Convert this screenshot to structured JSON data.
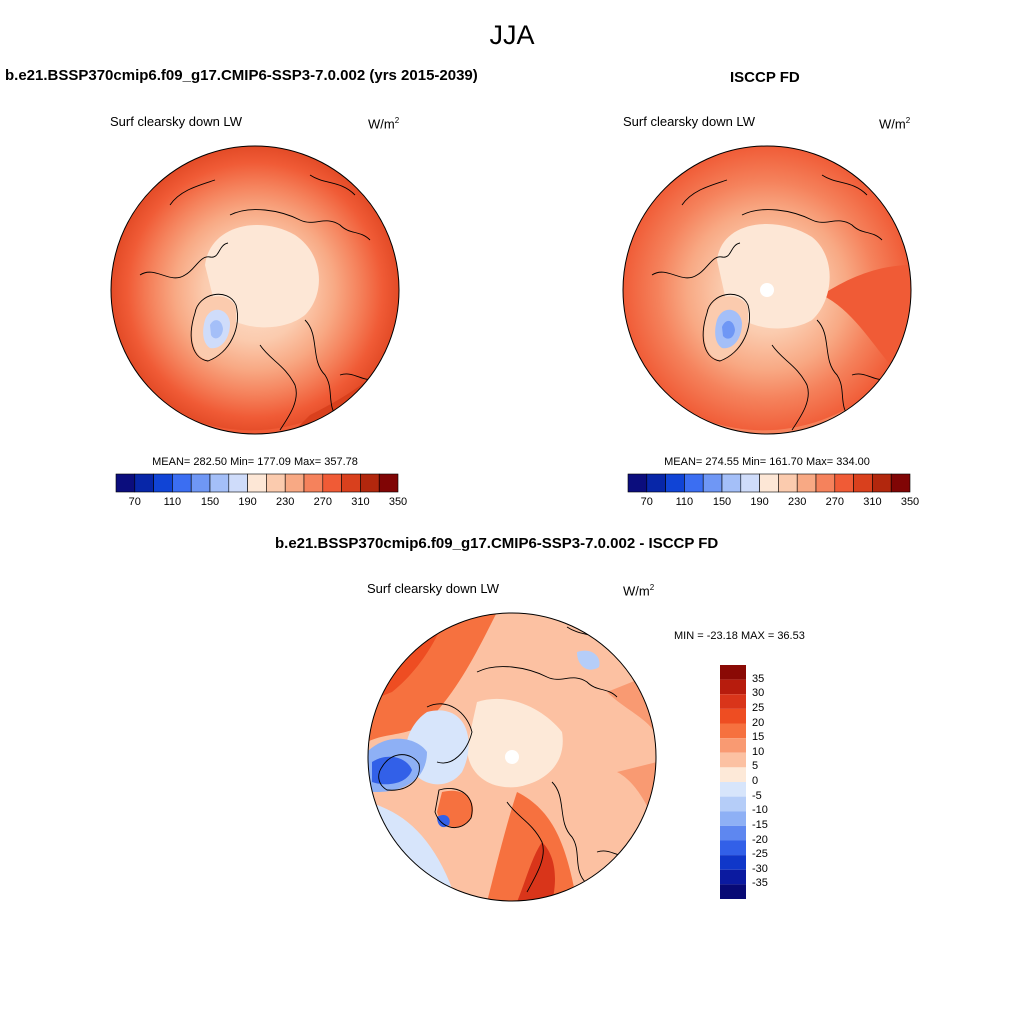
{
  "figure": {
    "season": "JJA"
  },
  "panels": [
    {
      "title": "b.e21.BSSP370cmip6.f09_g17.CMIP6-SSP3-7.0.002 (yrs 2015-2039)",
      "variable": "Surf clearsky down LW",
      "units_base": "W/m",
      "units_exp": "2",
      "stats": "MEAN= 282.50  Min= 177.09  Max= 357.78"
    },
    {
      "title": "ISCCP FD",
      "variable": "Surf clearsky down LW",
      "units_base": "W/m",
      "units_exp": "2",
      "stats": "MEAN= 274.55  Min= 161.70  Max= 334.00"
    },
    {
      "title": "b.e21.BSSP370cmip6.f09_g17.CMIP6-SSP3-7.0.002 - ISCCP FD",
      "variable": "Surf clearsky down LW",
      "units_base": "W/m",
      "units_exp": "2",
      "stats": "MIN = -23.18 MAX =  36.53"
    }
  ],
  "chart_data": [
    {
      "type": "heatmap",
      "projection": "north-polar-stereographic",
      "title": "b.e21.BSSP370cmip6.f09_g17.CMIP6-SSP3-7.0.002 (yrs 2015-2039)",
      "variable": "Surf clearsky down LW",
      "units": "W/m2",
      "mean": 282.5,
      "min": 177.09,
      "max": 357.78,
      "colorbar": {
        "orientation": "horizontal",
        "tick_labels": [
          "70",
          "110",
          "150",
          "190",
          "230",
          "270",
          "310",
          "350"
        ],
        "colors": [
          "#0b0d7d",
          "#0726a8",
          "#1044d6",
          "#3b6ef2",
          "#6f97f5",
          "#a4bff8",
          "#cfdcfa",
          "#fde7d6",
          "#fbcbae",
          "#f8a984",
          "#f5825c",
          "#f05b36",
          "#d9401d",
          "#b2270d",
          "#800505"
        ]
      }
    },
    {
      "type": "heatmap",
      "projection": "north-polar-stereographic",
      "title": "ISCCP FD",
      "variable": "Surf clearsky down LW",
      "units": "W/m2",
      "mean": 274.55,
      "min": 161.7,
      "max": 334.0,
      "colorbar": {
        "orientation": "horizontal",
        "tick_labels": [
          "70",
          "110",
          "150",
          "190",
          "230",
          "270",
          "310",
          "350"
        ],
        "colors": [
          "#0b0d7d",
          "#0726a8",
          "#1044d6",
          "#3b6ef2",
          "#6f97f5",
          "#a4bff8",
          "#cfdcfa",
          "#fde7d6",
          "#fbcbae",
          "#f8a984",
          "#f5825c",
          "#f05b36",
          "#d9401d",
          "#b2270d",
          "#800505"
        ]
      }
    },
    {
      "type": "heatmap",
      "projection": "north-polar-stereographic",
      "title": "b.e21.BSSP370cmip6.f09_g17.CMIP6-SSP3-7.0.002 - ISCCP FD",
      "variable": "Surf clearsky down LW",
      "units": "W/m2",
      "min": -23.18,
      "max": 36.53,
      "colorbar": {
        "orientation": "vertical",
        "tick_labels": [
          "35",
          "30",
          "25",
          "20",
          "15",
          "10",
          "5",
          "0",
          "-5",
          "-10",
          "-15",
          "-20",
          "-25",
          "-30",
          "-35"
        ],
        "colors": [
          "#8a0a05",
          "#b71c0d",
          "#d9351a",
          "#ee4d22",
          "#f6713f",
          "#f99a72",
          "#fcc1a2",
          "#fde9d8",
          "#d7e5fb",
          "#b5cdf8",
          "#8eb0f5",
          "#5e87f0",
          "#3260e8",
          "#1037c9",
          "#0b1aa0",
          "#080a75"
        ]
      }
    }
  ]
}
